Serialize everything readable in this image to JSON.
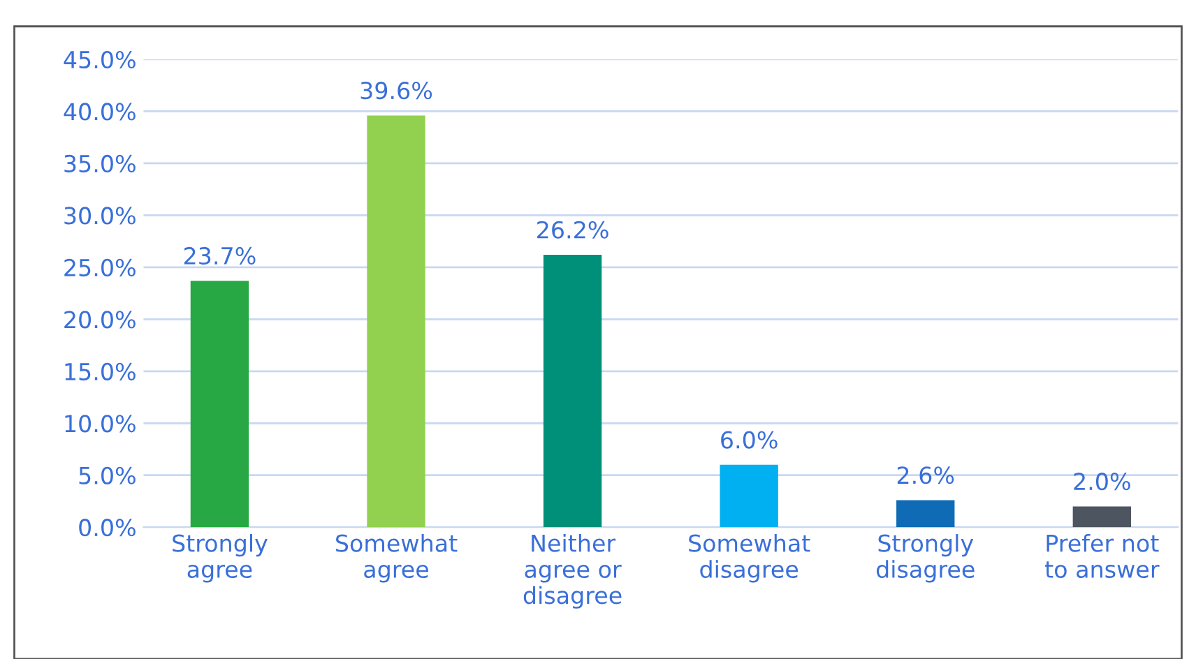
{
  "chart_data": {
    "type": "bar",
    "categories": [
      "Strongly\nagree",
      "Somewhat\nagree",
      "Neither\nagree or\ndisagree",
      "Somewhat\ndisagree",
      "Strongly\ndisagree",
      "Prefer not\nto answer"
    ],
    "values": [
      23.7,
      39.6,
      26.2,
      6.0,
      2.6,
      2.0
    ],
    "colors": [
      "#27a844",
      "#92d050",
      "#00907a",
      "#00b0f0",
      "#0f6bb5",
      "#4d5560"
    ],
    "value_labels": [
      "23.7%",
      "39.6%",
      "26.2%",
      "6.0%",
      "2.6%",
      "2.0%"
    ],
    "ylim": [
      0,
      45
    ],
    "yticks": [
      {
        "value": 0,
        "label": "0.0%"
      },
      {
        "value": 5,
        "label": "5.0%"
      },
      {
        "value": 10,
        "label": "10.0%"
      },
      {
        "value": 15,
        "label": "15.0%"
      },
      {
        "value": 20,
        "label": "20.0%"
      },
      {
        "value": 25,
        "label": "25.0%"
      },
      {
        "value": 30,
        "label": "30.0%"
      },
      {
        "value": 35,
        "label": "35.0%"
      },
      {
        "value": 40,
        "label": "40.0%"
      },
      {
        "value": 45,
        "label": "45.0%"
      }
    ],
    "grid": "y"
  }
}
